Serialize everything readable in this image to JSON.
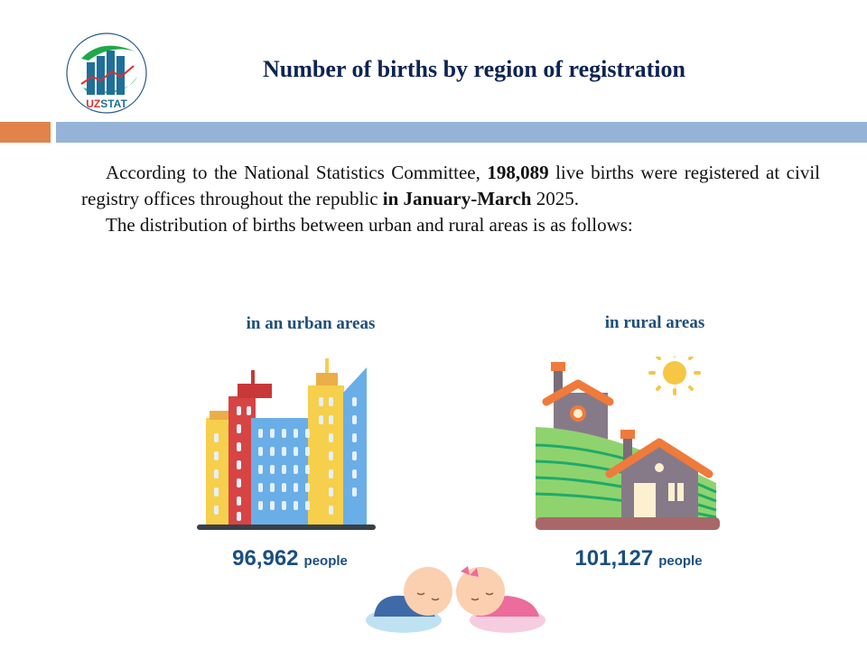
{
  "header": {
    "logo_text": "UZSTAT",
    "title": "Number of births by region of registration"
  },
  "body": {
    "p1_a": "According to the National Statistics Committee, ",
    "p1_total": "198,089",
    "p1_b": " live births were registered at civil registry offices throughout the republic ",
    "p1_period": "in January-March",
    "p1_c": " 2025.",
    "p2": "The distribution of births between urban and rural areas is as follows:"
  },
  "urban": {
    "label": "in an urban areas",
    "value": "96,962",
    "unit": "people"
  },
  "rural": {
    "label": "in rural areas",
    "value": "101,127",
    "unit": "people"
  },
  "colors": {
    "accent_orange": "#e08449",
    "accent_blue": "#95b3d7",
    "title": "#0e2452",
    "label": "#1f4e79"
  }
}
